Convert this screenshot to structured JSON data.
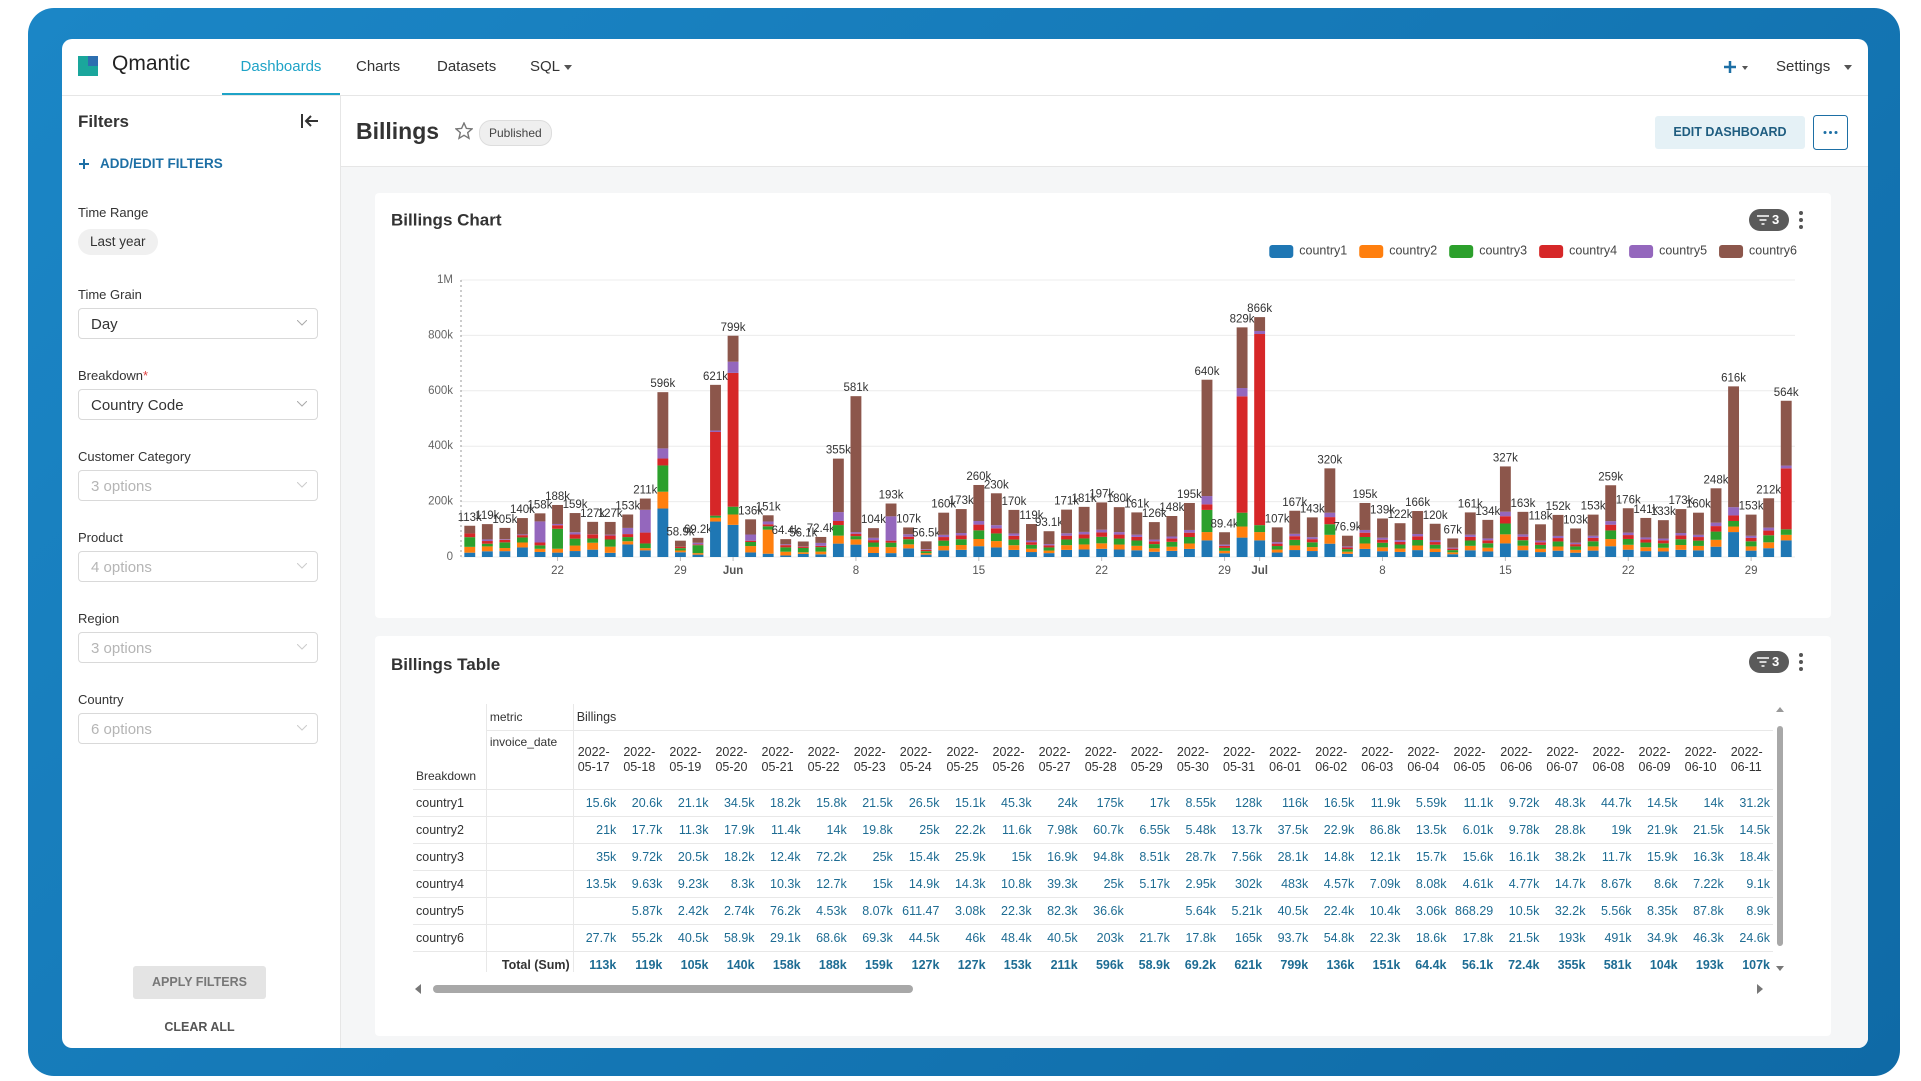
{
  "header": {
    "brand": "Qmantic",
    "nav": [
      "Dashboards",
      "Charts",
      "Datasets",
      "SQL"
    ],
    "settings": "Settings"
  },
  "filters": {
    "title": "Filters",
    "add": "ADD/EDIT FILTERS",
    "items": [
      {
        "label": "Time Range",
        "value": "Last year"
      },
      {
        "label": "Time Grain",
        "value": "Day"
      },
      {
        "label": "Breakdown",
        "required_mark": "*",
        "value": "Country Code"
      },
      {
        "label": "Customer Category",
        "value": "3 options"
      },
      {
        "label": "Product",
        "value": "4 options"
      },
      {
        "label": "Region",
        "value": "3 options"
      },
      {
        "label": "Country",
        "value": "6 options"
      }
    ],
    "apply": "APPLY FILTERS",
    "clear": "CLEAR ALL"
  },
  "dashboard": {
    "title": "Billings",
    "status": "Published",
    "edit": "EDIT DASHBOARD"
  },
  "chart_card": {
    "filter_count": 3
  },
  "chart_data": {
    "type": "stacked_bar",
    "title": "Billings Chart",
    "legend": "top-right",
    "grid": true,
    "x": [
      "2022-05-17",
      "2022-05-18",
      "2022-05-19",
      "2022-05-20",
      "2022-05-21",
      "2022-05-22",
      "2022-05-23",
      "2022-05-24",
      "2022-05-25",
      "2022-05-26",
      "2022-05-27",
      "2022-05-28",
      "2022-05-29",
      "2022-05-30",
      "2022-05-31",
      "2022-06-01",
      "2022-06-02",
      "2022-06-03",
      "2022-06-04",
      "2022-06-05",
      "2022-06-06",
      "2022-06-07",
      "2022-06-08",
      "2022-06-09",
      "2022-06-10",
      "2022-06-11",
      "2022-06-12",
      "2022-06-13",
      "2022-06-14",
      "2022-06-15",
      "2022-06-16",
      "2022-06-17",
      "2022-06-18",
      "2022-06-19",
      "2022-06-20",
      "2022-06-21",
      "2022-06-22",
      "2022-06-23",
      "2022-06-24",
      "2022-06-25",
      "2022-06-26",
      "2022-06-27",
      "2022-06-28",
      "2022-06-29",
      "2022-06-30",
      "2022-07-01",
      "2022-07-02",
      "2022-07-03",
      "2022-07-04",
      "2022-07-05",
      "2022-07-06",
      "2022-07-07",
      "2022-07-08",
      "2022-07-09",
      "2022-07-10",
      "2022-07-11",
      "2022-07-12",
      "2022-07-13",
      "2022-07-14",
      "2022-07-15",
      "2022-07-16",
      "2022-07-17",
      "2022-07-18",
      "2022-07-19",
      "2022-07-20",
      "2022-07-21",
      "2022-07-22",
      "2022-07-23",
      "2022-07-24",
      "2022-07-25",
      "2022-07-26",
      "2022-07-27",
      "2022-07-28",
      "2022-07-29",
      "2022-07-30",
      "2022-07-31"
    ],
    "xticks": [
      {
        "value": "2022-05-22",
        "label": "22"
      },
      {
        "value": "2022-05-29",
        "label": "29"
      },
      {
        "value": "2022-06-01",
        "label": "Jun"
      },
      {
        "value": "2022-06-08",
        "label": "8"
      },
      {
        "value": "2022-06-15",
        "label": "15"
      },
      {
        "value": "2022-06-22",
        "label": "22"
      },
      {
        "value": "2022-06-29",
        "label": "29"
      },
      {
        "value": "2022-07-01",
        "label": "Jul"
      },
      {
        "value": "2022-07-08",
        "label": "8"
      },
      {
        "value": "2022-07-15",
        "label": "15"
      },
      {
        "value": "2022-07-22",
        "label": "22"
      },
      {
        "value": "2022-07-29",
        "label": "29"
      }
    ],
    "ylim": [
      0,
      1000000
    ],
    "yticks": [
      0,
      {
        "value": 200000,
        "label": "200k"
      },
      {
        "value": 400000,
        "label": "400k"
      },
      {
        "value": 600000,
        "label": "600k"
      },
      {
        "value": 800000,
        "label": "800k"
      },
      {
        "value": 1000000,
        "label": "1M"
      }
    ],
    "series": [
      {
        "name": "country1",
        "color": "#1f77b4",
        "values": [
          15600,
          20600,
          21100,
          34500,
          18200,
          15800,
          21500,
          26500,
          15100,
          45300,
          24000,
          175000,
          17000,
          8550,
          128000,
          116000,
          16500,
          11900,
          5590,
          11100,
          9720,
          48300,
          44700,
          14500,
          14000,
          31200,
          8500,
          24000,
          26000,
          39000,
          34500,
          25500,
          17900,
          14000,
          25700,
          27200,
          29600,
          27000,
          24200,
          18900,
          22200,
          29300,
          60000,
          13400,
          70000,
          60000,
          16100,
          25100,
          21500,
          48000,
          11500,
          29300,
          20900,
          18300,
          24900,
          18000,
          10100,
          24200,
          20100,
          49100,
          24500,
          17700,
          22800,
          15500,
          23000,
          38900,
          26400,
          21200,
          20000,
          26000,
          24000,
          37200,
          90000,
          23000,
          31800,
          60000
        ]
      },
      {
        "name": "country2",
        "color": "#ff7f0e",
        "values": [
          21000,
          17700,
          11300,
          17900,
          11400,
          14000,
          19800,
          25000,
          22200,
          11600,
          7980,
          60700,
          6550,
          5480,
          13700,
          37500,
          22900,
          86800,
          13500,
          6010,
          9780,
          28800,
          19000,
          21900,
          21500,
          14500,
          5700,
          16000,
          17300,
          26000,
          23000,
          17000,
          11900,
          9300,
          17100,
          18100,
          19700,
          18000,
          16100,
          12600,
          14800,
          19500,
          30000,
          8900,
          40000,
          30000,
          10700,
          16700,
          14300,
          32000,
          7700,
          19500,
          13900,
          12200,
          16600,
          12000,
          6700,
          16100,
          13400,
          32700,
          16300,
          11800,
          15200,
          10300,
          15300,
          25900,
          17600,
          14100,
          13300,
          17300,
          16000,
          24800,
          20000,
          15300,
          21200,
          20000
        ]
      },
      {
        "name": "country3",
        "color": "#2ca02c",
        "values": [
          35000,
          9720,
          20500,
          18200,
          12400,
          72200,
          25000,
          15400,
          25900,
          15000,
          16900,
          94800,
          8510,
          28700,
          7560,
          28100,
          14800,
          12100,
          15700,
          15600,
          16100,
          38200,
          11700,
          15900,
          16300,
          18400,
          6800,
          19200,
          20800,
          31200,
          27600,
          20400,
          14300,
          11200,
          20500,
          21700,
          23600,
          21600,
          19300,
          15100,
          17800,
          23400,
          80000,
          10700,
          50000,
          25000,
          12800,
          20000,
          17200,
          38400,
          9200,
          23400,
          16700,
          14600,
          19900,
          14400,
          8000,
          19300,
          16100,
          39200,
          19600,
          14200,
          18200,
          12400,
          18400,
          31100,
          21100,
          16900,
          16000,
          20800,
          19200,
          29800,
          20000,
          18400,
          25400,
          20000
        ]
      },
      {
        "name": "country4",
        "color": "#d62728",
        "values": [
          13500,
          9630,
          9230,
          8300,
          10300,
          12700,
          15000,
          14900,
          14300,
          10800,
          39300,
          25000,
          5170,
          2950,
          302000,
          483000,
          4570,
          7090,
          8080,
          4610,
          4770,
          14700,
          8670,
          8600,
          7220,
          9100,
          4500,
          12800,
          13800,
          20800,
          18400,
          13600,
          9500,
          7400,
          13700,
          14500,
          15800,
          14400,
          12900,
          10100,
          11800,
          15600,
          20000,
          7200,
          420000,
          690000,
          8600,
          13400,
          11400,
          25600,
          6200,
          15600,
          11100,
          9800,
          13300,
          9600,
          5400,
          12900,
          10700,
          26200,
          13000,
          9400,
          12200,
          8200,
          12200,
          20700,
          14100,
          11300,
          10600,
          13800,
          12800,
          19800,
          20000,
          12200,
          17000,
          220000
        ]
      },
      {
        "name": "country5",
        "color": "#9467bd",
        "values": [
          null,
          5870,
          2420,
          2740,
          76200,
          4530,
          8070,
          611.47,
          3080,
          22300,
          82300,
          36600,
          null,
          5640,
          5210,
          40500,
          22400,
          10400,
          3060,
          868.29,
          10500,
          32200,
          5560,
          8350,
          87800,
          8900,
          2800,
          8000,
          8700,
          13000,
          11500,
          8500,
          6000,
          4700,
          8600,
          9100,
          9900,
          9000,
          8100,
          6300,
          7400,
          9800,
          30000,
          4500,
          30000,
          11000,
          5400,
          8400,
          7200,
          16000,
          3800,
          9800,
          7000,
          6100,
          8300,
          6000,
          3400,
          8100,
          6700,
          16400,
          8200,
          5900,
          7600,
          5200,
          7700,
          13000,
          8800,
          7100,
          6700,
          8700,
          8000,
          12400,
          30000,
          7700,
          10600,
          10000
        ]
      },
      {
        "name": "country6",
        "color": "#8c564b",
        "values": [
          27700,
          55200,
          40500,
          58900,
          29100,
          68600,
          69300,
          44500,
          46000,
          48400,
          40500,
          203000,
          21700,
          17800,
          165000,
          93700,
          54800,
          22300,
          18600,
          17800,
          21500,
          193000,
          491000,
          34900,
          46300,
          24600,
          28200,
          80000,
          86400,
          130000,
          115000,
          85000,
          59400,
          46500,
          85400,
          90400,
          98400,
          90000,
          80400,
          63000,
          74000,
          97400,
          420000,
          44700,
          219000,
          50000,
          53400,
          83400,
          71400,
          160000,
          38500,
          97400,
          69400,
          61000,
          83000,
          60000,
          33400,
          80400,
          67000,
          163400,
          81400,
          59000,
          76000,
          51400,
          76400,
          129400,
          88000,
          70400,
          66400,
          86400,
          80000,
          124000,
          436000,
          76400,
          106000,
          234000
        ]
      }
    ],
    "total_labels": [
      "113k",
      "119k",
      "105k",
      "140k",
      "158k",
      "188k",
      "159k",
      "127k",
      "127k",
      "153k",
      "211k",
      "596k",
      "58.9k",
      "69.2k",
      "621k",
      "799k",
      "136k",
      "151k",
      "64.4k",
      "56.1k",
      "72.4k",
      "355k",
      "581k",
      "104k",
      "193k",
      "107k",
      "56.5k",
      "160k",
      "173k",
      "260k",
      "230k",
      "170k",
      "119k",
      "93.1k",
      "171k",
      "181k",
      "197k",
      "180k",
      "161k",
      "126k",
      "148k",
      "195k",
      "640k",
      "89.4k",
      "829k",
      "866k",
      "107k",
      "167k",
      "143k",
      "320k",
      "76.9k",
      "195k",
      "139k",
      "122k",
      "166k",
      "120k",
      "67k",
      "161k",
      "134k",
      "327k",
      "163k",
      "118k",
      "152k",
      "103k",
      "153k",
      "259k",
      "176k",
      "141k",
      "133k",
      "173k",
      "160k",
      "248k",
      "616k",
      "153k",
      "212k",
      "564k"
    ]
  },
  "table": {
    "title": "Billings Table",
    "filter_count": 3,
    "metric_label": "metric",
    "metric": "Billings",
    "date_label": "invoice_date",
    "row_label": "Breakdown",
    "columns": [
      "2022-05-17",
      "2022-05-18",
      "2022-05-19",
      "2022-05-20",
      "2022-05-21",
      "2022-05-22",
      "2022-05-23",
      "2022-05-24",
      "2022-05-25",
      "2022-05-26",
      "2022-05-27",
      "2022-05-28",
      "2022-05-29",
      "2022-05-30",
      "2022-05-31",
      "2022-06-01",
      "2022-06-02",
      "2022-06-03",
      "2022-06-04",
      "2022-06-05",
      "2022-06-06",
      "2022-06-07",
      "2022-06-08",
      "2022-06-09",
      "2022-06-10",
      "2022-06-11"
    ],
    "rows": [
      {
        "name": "country1",
        "cells": [
          "15.6k",
          "20.6k",
          "21.1k",
          "34.5k",
          "18.2k",
          "15.8k",
          "21.5k",
          "26.5k",
          "15.1k",
          "45.3k",
          "24k",
          "175k",
          "17k",
          "8.55k",
          "128k",
          "116k",
          "16.5k",
          "11.9k",
          "5.59k",
          "11.1k",
          "9.72k",
          "48.3k",
          "44.7k",
          "14.5k",
          "14k",
          "31.2k"
        ]
      },
      {
        "name": "country2",
        "cells": [
          "21k",
          "17.7k",
          "11.3k",
          "17.9k",
          "11.4k",
          "14k",
          "19.8k",
          "25k",
          "22.2k",
          "11.6k",
          "7.98k",
          "60.7k",
          "6.55k",
          "5.48k",
          "13.7k",
          "37.5k",
          "22.9k",
          "86.8k",
          "13.5k",
          "6.01k",
          "9.78k",
          "28.8k",
          "19k",
          "21.9k",
          "21.5k",
          "14.5k"
        ]
      },
      {
        "name": "country3",
        "cells": [
          "35k",
          "9.72k",
          "20.5k",
          "18.2k",
          "12.4k",
          "72.2k",
          "25k",
          "15.4k",
          "25.9k",
          "15k",
          "16.9k",
          "94.8k",
          "8.51k",
          "28.7k",
          "7.56k",
          "28.1k",
          "14.8k",
          "12.1k",
          "15.7k",
          "15.6k",
          "16.1k",
          "38.2k",
          "11.7k",
          "15.9k",
          "16.3k",
          "18.4k"
        ]
      },
      {
        "name": "country4",
        "cells": [
          "13.5k",
          "9.63k",
          "9.23k",
          "8.3k",
          "10.3k",
          "12.7k",
          "15k",
          "14.9k",
          "14.3k",
          "10.8k",
          "39.3k",
          "25k",
          "5.17k",
          "2.95k",
          "302k",
          "483k",
          "4.57k",
          "7.09k",
          "8.08k",
          "4.61k",
          "4.77k",
          "14.7k",
          "8.67k",
          "8.6k",
          "7.22k",
          "9.1k"
        ]
      },
      {
        "name": "country5",
        "cells": [
          null,
          "5.87k",
          "2.42k",
          "2.74k",
          "76.2k",
          "4.53k",
          "8.07k",
          "611.47",
          "3.08k",
          "22.3k",
          "82.3k",
          "36.6k",
          null,
          "5.64k",
          "5.21k",
          "40.5k",
          "22.4k",
          "10.4k",
          "3.06k",
          "868.29",
          "10.5k",
          "32.2k",
          "5.56k",
          "8.35k",
          "87.8k",
          "8.9k"
        ]
      },
      {
        "name": "country6",
        "cells": [
          "27.7k",
          "55.2k",
          "40.5k",
          "58.9k",
          "29.1k",
          "68.6k",
          "69.3k",
          "44.5k",
          "46k",
          "48.4k",
          "40.5k",
          "203k",
          "21.7k",
          "17.8k",
          "165k",
          "93.7k",
          "54.8k",
          "22.3k",
          "18.6k",
          "17.8k",
          "21.5k",
          "193k",
          "491k",
          "34.9k",
          "46.3k",
          "24.6k"
        ]
      }
    ],
    "total_label": "Total (Sum)",
    "totals": [
      "113k",
      "119k",
      "105k",
      "140k",
      "158k",
      "188k",
      "159k",
      "127k",
      "127k",
      "153k",
      "211k",
      "596k",
      "58.9k",
      "69.2k",
      "621k",
      "799k",
      "136k",
      "151k",
      "64.4k",
      "56.1k",
      "72.4k",
      "355k",
      "581k",
      "104k",
      "193k",
      "107k"
    ]
  }
}
